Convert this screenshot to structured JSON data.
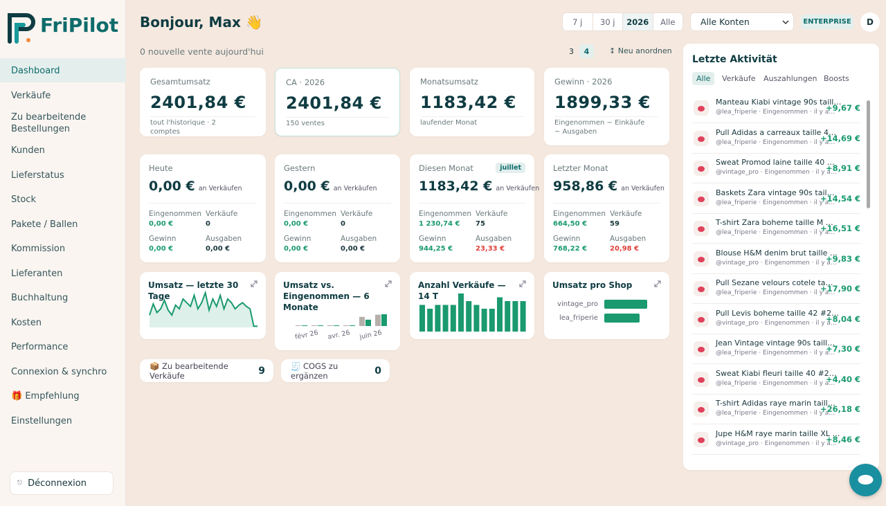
{
  "sidebar": {
    "logo": "FriPilot",
    "nav": [
      "Dashboard",
      "Verkäufe",
      "Zu bearbeitende Bestellungen",
      "Kunden",
      "Lieferstatus",
      "Stock",
      "Pakete / Ballen",
      "Kommission",
      "Lieferanten",
      "Buchhaltung",
      "Kosten",
      "Performance",
      "Connexion & synchro",
      "🎁 Empfehlung",
      "Einstellungen"
    ],
    "logout": "Déconnexion"
  },
  "header": {
    "greeting": "Bonjour, Max 👋",
    "subtitle": "0 nouvelle vente aujourd'hui",
    "ranges": [
      "7 j",
      "30 j",
      "2026",
      "Alle"
    ],
    "account_select": "Alle Konten",
    "plan": "ENTERPRISE",
    "avatar": "D",
    "columns": [
      "3",
      "4"
    ],
    "reorder": "↕ Neu anordnen"
  },
  "kpis": [
    {
      "label": "Gesamtumsatz",
      "value": "2401,84 €",
      "note": "tout l'historique · 2 comptes"
    },
    {
      "label": "CA · 2026",
      "value": "2401,84 €",
      "note": "150 ventes"
    },
    {
      "label": "Monatsumsatz",
      "value": "1183,42 €",
      "note": "laufender Monat"
    },
    {
      "label": "Gewinn · 2026",
      "value": "1899,33 €",
      "note": "Eingenommen − Einkäufe − Ausgaben"
    }
  ],
  "periods": [
    {
      "label": "Heute",
      "value": "0,00 €",
      "unit": "an Verkäufen",
      "stats": [
        {
          "label": "Eingenommen",
          "value": "0,00 €",
          "color": "#1a9a6e"
        },
        {
          "label": "Verkäufe",
          "value": "0",
          "color": "#17353a"
        },
        {
          "label": "Gewinn",
          "value": "0,00 €",
          "color": "#1a9a6e"
        },
        {
          "label": "Ausgaben",
          "value": "0,00 €",
          "color": "#17353a"
        }
      ]
    },
    {
      "label": "Gestern",
      "value": "0,00 €",
      "unit": "an Verkäufen",
      "stats": [
        {
          "label": "Eingenommen",
          "value": "0,00 €",
          "color": "#1a9a6e"
        },
        {
          "label": "Verkäufe",
          "value": "0",
          "color": "#17353a"
        },
        {
          "label": "Gewinn",
          "value": "0,00 €",
          "color": "#1a9a6e"
        },
        {
          "label": "Ausgaben",
          "value": "0,00 €",
          "color": "#17353a"
        }
      ]
    },
    {
      "label": "Diesen Monat",
      "badge": "juillet",
      "value": "1183,42 €",
      "unit": "an Verkäufen",
      "stats": [
        {
          "label": "Eingenommen",
          "value": "1 230,74 €",
          "color": "#1a9a6e"
        },
        {
          "label": "Verkäufe",
          "value": "75",
          "color": "#17353a"
        },
        {
          "label": "Gewinn",
          "value": "944,25 €",
          "color": "#1a9a6e"
        },
        {
          "label": "Ausgaben",
          "value": "23,33 €",
          "color": "#e0403a"
        }
      ]
    },
    {
      "label": "Letzter Monat",
      "value": "958,86 €",
      "unit": "an Verkäufen",
      "stats": [
        {
          "label": "Eingenommen",
          "value": "664,50 €",
          "color": "#1a9a6e"
        },
        {
          "label": "Verkäufe",
          "value": "59",
          "color": "#17353a"
        },
        {
          "label": "Gewinn",
          "value": "768,22 €",
          "color": "#1a9a6e"
        },
        {
          "label": "Ausgaben",
          "value": "20,98 €",
          "color": "#e0403a"
        }
      ]
    }
  ],
  "charts": [
    {
      "type": "area",
      "title": "Umsatz — letzte 30 Tage",
      "color": "#1a9a6e",
      "values": [
        20,
        38,
        24,
        30,
        44,
        28,
        20,
        36,
        30,
        46,
        40,
        34,
        52,
        30,
        40,
        56,
        28,
        46,
        34,
        52,
        30,
        46,
        40,
        30,
        36,
        40,
        34,
        30,
        2,
        2
      ]
    },
    {
      "type": "grouped-bar",
      "title": "Umsatz vs. Eingenommen — 6 Monate",
      "categories": [
        null,
        "févr 26",
        null,
        "avr. 26",
        null,
        "juin 26"
      ],
      "series": [
        {
          "color": "#b5b0aa",
          "values": [
            0,
            30,
            40,
            30,
            958.86,
            1183.42
          ]
        },
        {
          "color": "#1a9a6e",
          "values": [
            0,
            30,
            30,
            30,
            664.5,
            1230.74
          ]
        }
      ]
    },
    {
      "type": "bar",
      "title": "Anzahl Verkäufe — 14 T",
      "color": "#1a9a6e",
      "values": [
        7,
        6,
        7,
        7,
        7,
        10,
        8,
        7,
        6,
        6,
        9,
        8,
        8,
        8
      ]
    },
    {
      "type": "hbar",
      "title": "Umsatz pro Shop",
      "color": "#1a9a6e",
      "categories": [
        "vintage_pro",
        "lea_friperie"
      ],
      "values": [
        1317,
        1084
      ]
    }
  ],
  "counters": [
    {
      "label": "📦 Zu bearbeitende Verkäufe",
      "value": "9"
    },
    {
      "label": "🧾 COGS zu ergänzen",
      "value": "0"
    }
  ],
  "activity": {
    "title": "Letzte Aktivität",
    "tabs": [
      "Alle",
      "Verkäufe",
      "Auszahlungen",
      "Boosts"
    ],
    "items": [
      {
        "title": "Manteau Kiabi vintage 90s taill…",
        "meta": "@lea_friperie · Eingenommen · il y a…",
        "amount": "+9,67 €"
      },
      {
        "title": "Pull Adidas a carreaux taille 4…",
        "meta": "@lea_friperie · Eingenommen · il y a…",
        "amount": "+14,69 €"
      },
      {
        "title": "Sweat Promod laine taille 40 …",
        "meta": "@vintage_pro · Eingenommen · il y a…",
        "amount": "+8,91 €"
      },
      {
        "title": "Baskets Zara vintage 90s tail…",
        "meta": "@lea_friperie · Eingenommen · il y a…",
        "amount": "+14,54 €"
      },
      {
        "title": "T-shirt Zara boheme taille M …",
        "meta": "@lea_friperie · Eingenommen · il y a…",
        "amount": "+16,51 €"
      },
      {
        "title": "Blouse H&M denim brut taille …",
        "meta": "@vintage_pro · Eingenommen · il y a…",
        "amount": "+9,83 €"
      },
      {
        "title": "Pull Sezane velours cotele ta…",
        "meta": "@lea_friperie · Eingenommen · il y a…",
        "amount": "+17,90 €"
      },
      {
        "title": "Pull Levis boheme taille 42 #2…",
        "meta": "@vintage_pro · Eingenommen · il y a…",
        "amount": "+8,04 €"
      },
      {
        "title": "Jean Vintage vintage 90s taill…",
        "meta": "@lea_friperie · Eingenommen · il y a…",
        "amount": "+7,30 €"
      },
      {
        "title": "Sweat Kiabi fleuri taille 40 #2…",
        "meta": "@lea_friperie · Eingenommen · il y a…",
        "amount": "+4,40 €"
      },
      {
        "title": "T-shirt Adidas raye marin taill…",
        "meta": "@lea_friperie · Eingenommen · il y a…",
        "amount": "+26,18 €"
      },
      {
        "title": "Jupe H&M raye marin taille XL …",
        "meta": "@vintage_pro · Eingenommen · il y a…",
        "amount": "+8,46 €"
      }
    ]
  }
}
